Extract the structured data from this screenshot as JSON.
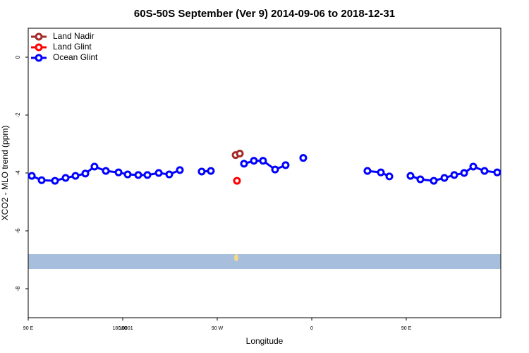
{
  "chart_data": {
    "type": "line",
    "title": "60S-50S September (Ver 9)   2014-09-06 to 2018-12-31",
    "x_label": "Longitude",
    "y_label": "XCO2 - MLO trend (ppm)",
    "xlim": [
      90,
      540
    ],
    "ylim": [
      -9,
      1
    ],
    "xticks": [
      {
        "value": 90,
        "label": "90 E"
      },
      180,
      {
        "value": 270,
        "label": "90 W"
      },
      {
        "value": 360,
        "label": "0"
      },
      {
        "value": 450,
        "label": "90 E"
      },
      180.0001
    ],
    "yticks": [
      0,
      -2,
      -4,
      -6,
      -8
    ],
    "legend": "top-left",
    "series": [
      {
        "name": "Land Nadir",
        "color": "#a52a2a",
        "x": [
          287.5,
          291.5
        ],
        "values": [
          -3.38,
          -3.33
        ]
      },
      {
        "name": "Land Glint",
        "color": "#ff0000",
        "x": [
          288.8
        ],
        "values": [
          -4.27
        ]
      },
      {
        "name": "Ocean Glint",
        "color": "#0000ff",
        "x": [
          93.4,
          102.8,
          115.5,
          125.6,
          135,
          144.4,
          153.1,
          163.9,
          176,
          184.7,
          194.8,
          203.5,
          214.3,
          224.3,
          234.4,
          null,
          255.2,
          263.9,
          null,
          295.5,
          304.9,
          313.6,
          325.1,
          335.1,
          null,
          351.9,
          null,
          413,
          425.8,
          433.9,
          null,
          454,
          463.4,
          476.2,
          486.3,
          495.7,
          505.1,
          513.8,
          524.5,
          536.6
        ],
        "values": [
          -4.1,
          -4.25,
          -4.27,
          -4.17,
          -4.1,
          -4.02,
          -3.78,
          -3.93,
          -3.98,
          -4.05,
          -4.07,
          -4.07,
          -4.0,
          -4.05,
          -3.9,
          null,
          -3.95,
          -3.93,
          null,
          -3.68,
          -3.58,
          -3.58,
          -3.88,
          -3.73,
          null,
          -3.48,
          null,
          -3.93,
          -3.98,
          -4.12,
          null,
          -4.1,
          -4.22,
          -4.27,
          -4.17,
          -4.07,
          -4.0,
          -3.78,
          -3.93,
          -3.98
        ]
      }
    ]
  }
}
